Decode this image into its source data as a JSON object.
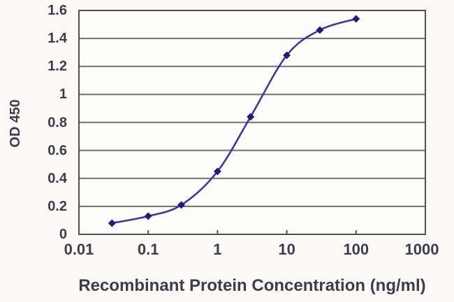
{
  "figure": {
    "background_color": "#fbfaf6",
    "text_color": "#3c3c4e"
  },
  "chart_data": {
    "type": "line",
    "title": "",
    "xlabel": "Recombinant Protein Concentration (ng/ml)",
    "ylabel": "OD 450",
    "x_scale": "log",
    "xlim": [
      0.01,
      1000
    ],
    "ylim": [
      0,
      1.6
    ],
    "x_ticks": [
      0.01,
      0.1,
      1,
      10,
      100,
      1000
    ],
    "x_tick_labels": [
      "0.01",
      "0.1",
      "1",
      "10",
      "100",
      "1000"
    ],
    "y_ticks": [
      0,
      0.2,
      0.4,
      0.6,
      0.8,
      1,
      1.2,
      1.4,
      1.6
    ],
    "y_tick_labels": [
      "0",
      "0.2",
      "0.4",
      "0.6",
      "0.8",
      "1",
      "1.2",
      "1.4",
      "1.6"
    ],
    "grid": "horizontal",
    "legend": "none",
    "series": [
      {
        "name": "OD 450",
        "x": [
          0.03,
          0.1,
          0.3,
          1,
          3,
          10,
          30,
          100
        ],
        "y": [
          0.08,
          0.13,
          0.21,
          0.45,
          0.84,
          1.28,
          1.46,
          1.54
        ],
        "marker": "diamond",
        "smooth": true,
        "line_color": "#3a3a9e",
        "marker_color": "#1e1e78"
      }
    ],
    "colors": {
      "gridline": "#6e6e6e",
      "axis_border": "#4f4f4f",
      "plot_background": "#fdfdfb"
    }
  }
}
